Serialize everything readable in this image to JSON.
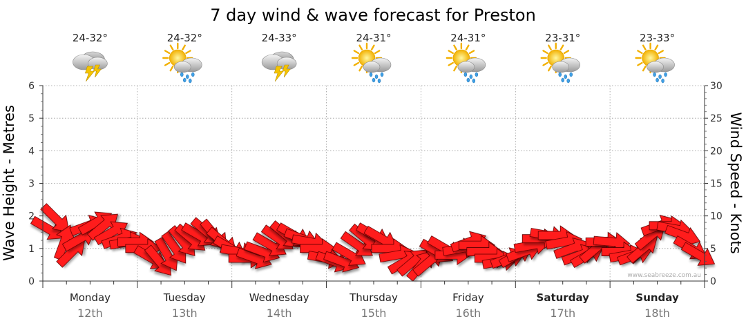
{
  "title": "7 day wind & wave forecast for Preston",
  "credit": "www.seabreeze.com.au",
  "colors": {
    "arrow": "#ff1a1a",
    "arrow_stroke": "#5a0000",
    "grid": "#999999"
  },
  "chart_data": {
    "type": "line",
    "title": "7 day wind & wave forecast for Preston",
    "left_axis": {
      "label": "Wave Height - Metres",
      "range": [
        0,
        6
      ],
      "ticks": [
        "0",
        "1",
        "2",
        "3",
        "4",
        "5",
        "6"
      ]
    },
    "right_axis": {
      "label": "Wind Speed - Knots",
      "range": [
        0,
        30
      ],
      "ticks": [
        "0",
        "5",
        "10",
        "15",
        "20",
        "25",
        "30"
      ]
    },
    "grid": true,
    "days": [
      {
        "name": "Monday",
        "date": "12th",
        "bold": false,
        "temp": "24-32°",
        "icon": "storm-icon"
      },
      {
        "name": "Tuesday",
        "date": "13th",
        "bold": false,
        "temp": "24-32°",
        "icon": "sun-rain-icon"
      },
      {
        "name": "Wednesday",
        "date": "14th",
        "bold": false,
        "temp": "24-33°",
        "icon": "storm-icon"
      },
      {
        "name": "Thursday",
        "date": "15th",
        "bold": false,
        "temp": "24-31°",
        "icon": "sun-rain-icon"
      },
      {
        "name": "Friday",
        "date": "16th",
        "bold": false,
        "temp": "24-31°",
        "icon": "sun-rain-icon"
      },
      {
        "name": "Saturday",
        "date": "17th",
        "bold": true,
        "temp": "23-31°",
        "icon": "sun-rain-icon"
      },
      {
        "name": "Sunday",
        "date": "18th",
        "bold": true,
        "temp": "23-33°",
        "icon": "sun-rain-icon"
      }
    ],
    "series": [
      {
        "unit": "knots",
        "values": [
          8,
          9.5,
          6,
          4.5,
          6.5,
          8.5,
          9,
          8.5,
          7.5,
          6.5,
          6,
          6,
          5,
          3.5,
          3,
          4,
          5,
          6,
          6.5,
          7,
          7.5,
          7,
          6,
          5,
          4.5,
          3.5,
          3.5,
          4.5,
          5.5,
          6.5,
          7,
          7,
          6.5,
          6,
          5,
          3.5,
          3,
          3,
          4,
          5.5,
          6.5,
          7,
          6.5,
          5,
          4,
          3,
          3,
          2.5,
          3,
          4.5,
          5,
          4,
          5,
          6,
          5.5,
          4.5,
          3.5,
          3,
          3.5,
          4,
          4.5,
          5.5,
          6.5,
          7,
          7,
          6,
          5,
          4,
          4,
          5,
          6,
          6,
          4.5,
          4,
          4,
          5,
          7,
          8.5,
          8.5,
          8,
          7,
          5,
          4
        ],
        "direction_deg": [
          300,
          315,
          200,
          225,
          240,
          250,
          240,
          230,
          240,
          250,
          260,
          270,
          270,
          300,
          320,
          330,
          325,
          320,
          310,
          300,
          310,
          320,
          310,
          300,
          280,
          270,
          290,
          290,
          300,
          305,
          310,
          300,
          290,
          280,
          270,
          280,
          290,
          290,
          300,
          305,
          310,
          300,
          300,
          270,
          260,
          240,
          230,
          220,
          230,
          300,
          300,
          270,
          260,
          250,
          270,
          270,
          270,
          260,
          250,
          240,
          250,
          260,
          270,
          280,
          270,
          260,
          250,
          250,
          240,
          230,
          270,
          275,
          270,
          260,
          250,
          230,
          230,
          250,
          270,
          280,
          290,
          300,
          300
        ]
      }
    ]
  }
}
